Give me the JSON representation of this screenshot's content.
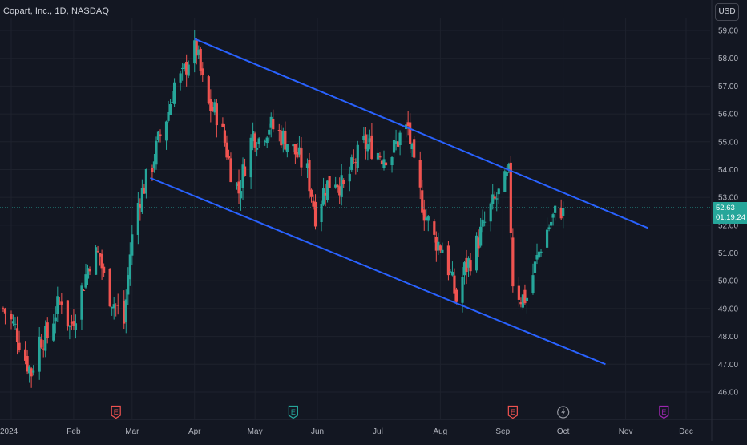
{
  "header": {
    "symbol_title": "Copart, Inc., 1D, NASDAQ",
    "currency": "USD"
  },
  "last_price": {
    "price": "52.63",
    "countdown": "01:19:24",
    "color": "#26a69a"
  },
  "colors": {
    "background": "#131722",
    "up": "#26a69a",
    "down": "#ef5350",
    "trendline": "#2962ff",
    "grid": "#1e222d",
    "earnings_marker": "#f05350",
    "dividend_marker": "#26a69a",
    "split_marker": "#9598a1",
    "future_earnings_marker": "#9c27b0"
  },
  "chart_data": {
    "type": "candlestick",
    "title": "Copart, Inc., 1D, NASDAQ",
    "y_axis": {
      "ylim": [
        45.6,
        59.4
      ],
      "ticks": [
        46,
        47,
        48,
        49,
        50,
        51,
        52,
        53,
        54,
        55,
        56,
        57,
        58,
        59
      ],
      "tick_labels": [
        "46.00",
        "47.00",
        "48.00",
        "49.00",
        "50.00",
        "51.00",
        "52.00",
        "53.00",
        "54.00",
        "55.00",
        "56.00",
        "57.00",
        "58.00",
        "59.00"
      ]
    },
    "x_axis": {
      "start_date": "2023-12-28",
      "end_date": "2025-01-12",
      "tick_labels": [
        {
          "date": "2024-01-01",
          "label": "2024"
        },
        {
          "date": "2024-02-01",
          "label": "Feb"
        },
        {
          "date": "2024-03-01",
          "label": "Mar"
        },
        {
          "date": "2024-04-01",
          "label": "Apr"
        },
        {
          "date": "2024-05-01",
          "label": "May"
        },
        {
          "date": "2024-06-01",
          "label": "Jun"
        },
        {
          "date": "2024-07-01",
          "label": "Jul"
        },
        {
          "date": "2024-08-01",
          "label": "Aug"
        },
        {
          "date": "2024-09-01",
          "label": "Sep"
        },
        {
          "date": "2024-10-01",
          "label": "Oct"
        },
        {
          "date": "2024-11-01",
          "label": "Nov"
        },
        {
          "date": "2024-12-01",
          "label": "Dec"
        }
      ]
    },
    "series": [
      {
        "name": "Copart, Inc.",
        "kind": "close_path_approx",
        "points": [
          [
            "2023-12-28",
            49.0
          ],
          [
            "2024-01-03",
            48.3
          ],
          [
            "2024-01-08",
            47.2
          ],
          [
            "2024-01-11",
            46.7
          ],
          [
            "2024-01-15",
            47.9
          ],
          [
            "2024-01-19",
            48.0
          ],
          [
            "2024-01-23",
            48.9
          ],
          [
            "2024-01-26",
            49.4
          ],
          [
            "2024-01-30",
            48.3
          ],
          [
            "2024-02-02",
            48.9
          ],
          [
            "2024-02-07",
            50.2
          ],
          [
            "2024-02-10",
            51.0
          ],
          [
            "2024-02-14",
            50.9
          ],
          [
            "2024-02-17",
            49.7
          ],
          [
            "2024-02-22",
            49.1
          ],
          [
            "2024-02-26",
            48.5
          ],
          [
            "2024-02-29",
            51.0
          ],
          [
            "2024-03-03",
            52.6
          ],
          [
            "2024-03-07",
            53.4
          ],
          [
            "2024-03-11",
            54.2
          ],
          [
            "2024-03-14",
            55.0
          ],
          [
            "2024-03-19",
            56.1
          ],
          [
            "2024-03-22",
            57.1
          ],
          [
            "2024-03-26",
            57.3
          ],
          [
            "2024-03-30",
            58.2
          ],
          [
            "2024-04-02",
            58.3
          ],
          [
            "2024-04-05",
            57.1
          ],
          [
            "2024-04-08",
            56.3
          ],
          [
            "2024-04-12",
            56.0
          ],
          [
            "2024-04-16",
            55.0
          ],
          [
            "2024-04-19",
            54.0
          ],
          [
            "2024-04-23",
            53.2
          ],
          [
            "2024-04-26",
            54.2
          ],
          [
            "2024-04-30",
            55.3
          ],
          [
            "2024-05-03",
            55.1
          ],
          [
            "2024-05-08",
            55.6
          ],
          [
            "2024-05-13",
            55.3
          ],
          [
            "2024-05-17",
            55.0
          ],
          [
            "2024-05-22",
            54.5
          ],
          [
            "2024-05-27",
            53.9
          ],
          [
            "2024-05-31",
            52.4
          ],
          [
            "2024-06-05",
            53.4
          ],
          [
            "2024-06-10",
            53.7
          ],
          [
            "2024-06-14",
            53.3
          ],
          [
            "2024-06-19",
            54.2
          ],
          [
            "2024-06-24",
            54.9
          ],
          [
            "2024-06-28",
            54.8
          ],
          [
            "2024-07-03",
            54.5
          ],
          [
            "2024-07-08",
            54.6
          ],
          [
            "2024-07-12",
            55.2
          ],
          [
            "2024-07-16",
            55.5
          ],
          [
            "2024-07-19",
            54.0
          ],
          [
            "2024-07-24",
            52.5
          ],
          [
            "2024-07-29",
            51.5
          ],
          [
            "2024-08-02",
            51.2
          ],
          [
            "2024-08-06",
            50.2
          ],
          [
            "2024-08-09",
            49.3
          ],
          [
            "2024-08-13",
            50.4
          ],
          [
            "2024-08-17",
            50.9
          ],
          [
            "2024-08-21",
            51.7
          ],
          [
            "2024-08-26",
            52.6
          ],
          [
            "2024-08-30",
            53.1
          ],
          [
            "2024-09-04",
            53.8
          ],
          [
            "2024-09-06",
            50.0
          ],
          [
            "2024-09-10",
            49.4
          ],
          [
            "2024-09-13",
            49.4
          ],
          [
            "2024-09-17",
            50.5
          ],
          [
            "2024-09-20",
            51.3
          ],
          [
            "2024-09-24",
            52.0
          ],
          [
            "2024-09-27",
            52.4
          ],
          [
            "2024-10-01",
            52.63
          ]
        ]
      }
    ],
    "trendlines": [
      {
        "name": "channel-upper",
        "from": [
          "2024-04-01",
          58.7
        ],
        "to": [
          "2024-11-12",
          51.9
        ]
      },
      {
        "name": "channel-lower",
        "from": [
          "2024-03-10",
          53.7
        ],
        "to": [
          "2024-10-22",
          47.0
        ]
      }
    ],
    "last_price_line": 52.63,
    "event_markers": [
      {
        "type": "earnings",
        "date": "2024-02-22",
        "label": "E"
      },
      {
        "type": "dividend",
        "date": "2024-05-20",
        "label": "E"
      },
      {
        "type": "earnings",
        "date": "2024-09-06",
        "label": "E"
      },
      {
        "type": "split",
        "date": "2024-10-01",
        "label": "⚡"
      },
      {
        "type": "future-earnings",
        "date": "2024-11-20",
        "label": "E"
      }
    ]
  }
}
